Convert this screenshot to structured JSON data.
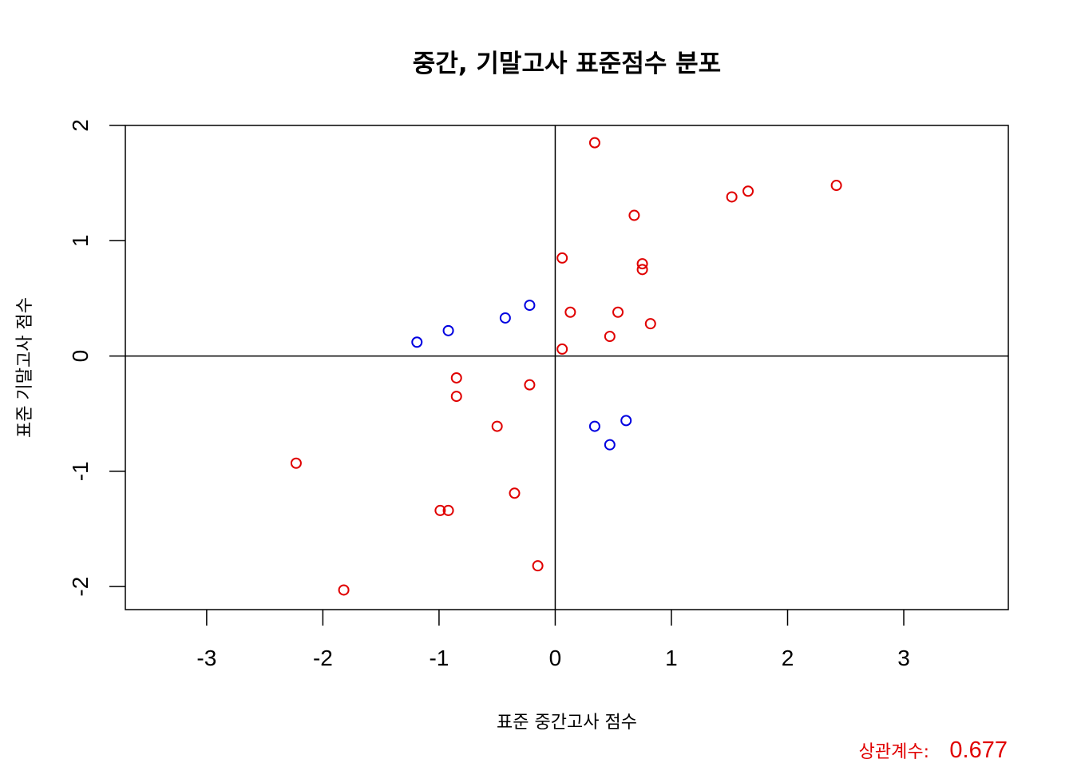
{
  "chart_data": {
    "type": "scatter",
    "title": "중간, 기말고사 표준점수 분포",
    "xlabel": "표준 중간고사 점수",
    "ylabel": "표준 기말고사 점수",
    "xlim": [
      -3.7,
      3.9
    ],
    "ylim": [
      -2.2,
      2.0
    ],
    "x_ticks": [
      "-3",
      "-2",
      "-1",
      "0",
      "1",
      "2",
      "3"
    ],
    "y_ticks": [
      "-2",
      "-1",
      "0",
      "1",
      "2"
    ],
    "reference_lines": {
      "x": 0,
      "y": 0
    },
    "grid": false,
    "colors": {
      "same_sign": "#e00000",
      "opposite_sign": "#0000e0"
    },
    "series": [
      {
        "color": "#e00000",
        "points": [
          {
            "x": 0.34,
            "y": 1.85
          },
          {
            "x": 2.42,
            "y": 1.48
          },
          {
            "x": 1.66,
            "y": 1.43
          },
          {
            "x": 1.52,
            "y": 1.38
          },
          {
            "x": 0.68,
            "y": 1.22
          },
          {
            "x": 0.06,
            "y": 0.85
          },
          {
            "x": 0.75,
            "y": 0.8
          },
          {
            "x": 0.75,
            "y": 0.75
          },
          {
            "x": 0.13,
            "y": 0.38
          },
          {
            "x": 0.54,
            "y": 0.38
          },
          {
            "x": 0.82,
            "y": 0.28
          },
          {
            "x": 0.47,
            "y": 0.17
          },
          {
            "x": 0.06,
            "y": 0.06
          },
          {
            "x": -0.85,
            "y": -0.19
          },
          {
            "x": -0.22,
            "y": -0.25
          },
          {
            "x": -0.85,
            "y": -0.35
          },
          {
            "x": -0.5,
            "y": -0.61
          },
          {
            "x": -2.23,
            "y": -0.93
          },
          {
            "x": -0.35,
            "y": -1.19
          },
          {
            "x": -0.99,
            "y": -1.34
          },
          {
            "x": -0.92,
            "y": -1.34
          },
          {
            "x": -0.15,
            "y": -1.82
          },
          {
            "x": -1.82,
            "y": -2.03
          }
        ]
      },
      {
        "color": "#0000e0",
        "points": [
          {
            "x": -0.22,
            "y": 0.44
          },
          {
            "x": -0.43,
            "y": 0.33
          },
          {
            "x": -0.92,
            "y": 0.22
          },
          {
            "x": -1.19,
            "y": 0.12
          },
          {
            "x": 0.61,
            "y": -0.56
          },
          {
            "x": 0.34,
            "y": -0.61
          },
          {
            "x": 0.47,
            "y": -0.77
          }
        ]
      }
    ]
  },
  "annotation": {
    "label": "상관계수:",
    "value": "0.677",
    "color": "#e00000"
  }
}
